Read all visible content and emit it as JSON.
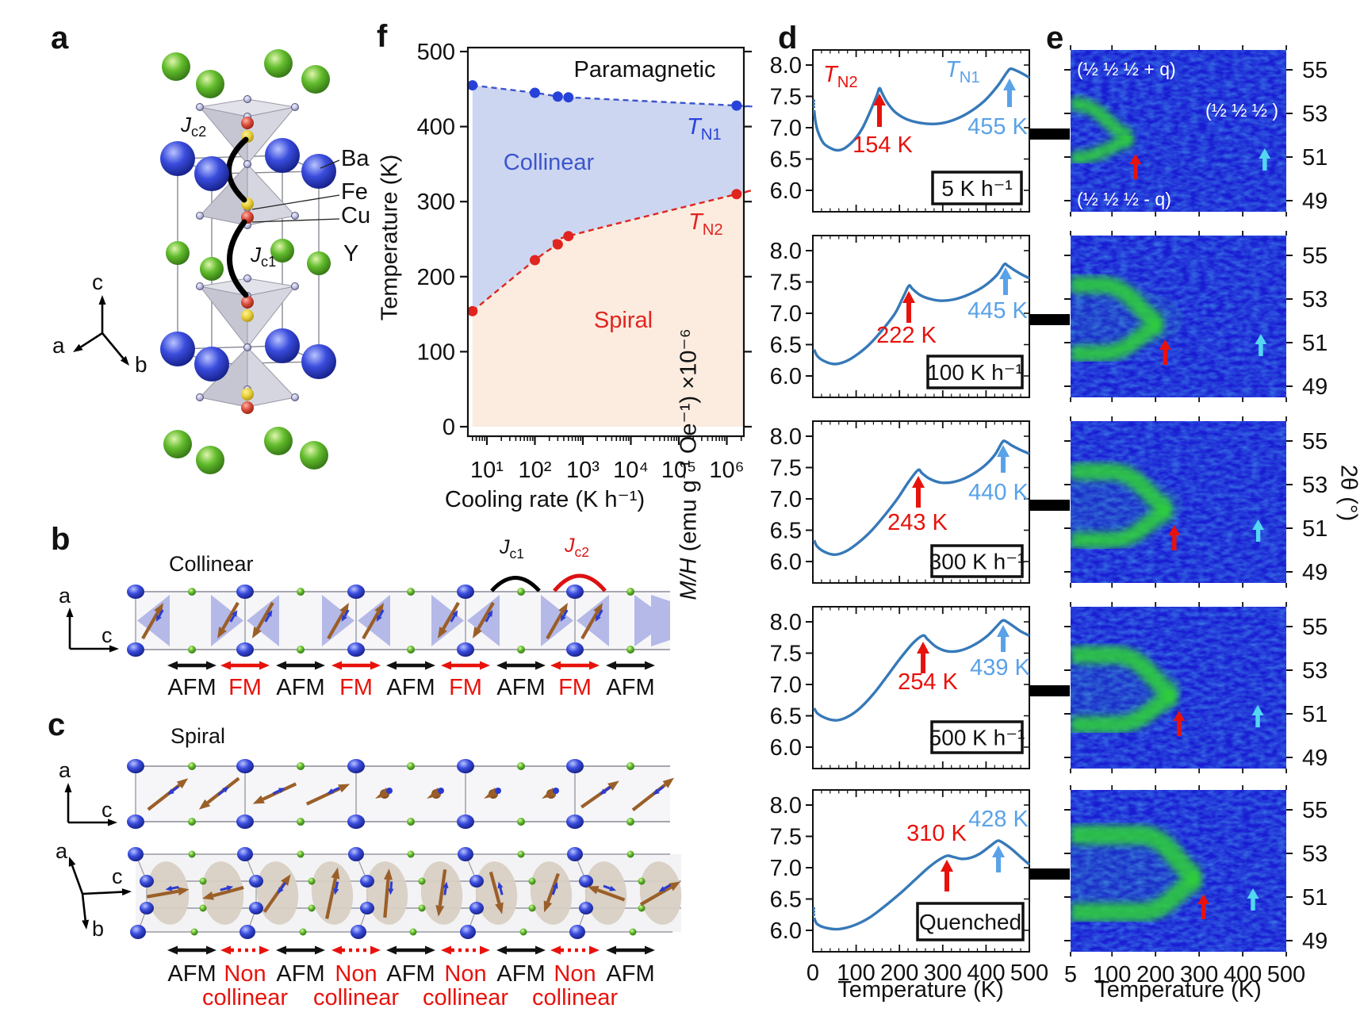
{
  "panels": {
    "a": {
      "label": "a",
      "atoms": {
        "ba": "Ba",
        "fe": "Fe",
        "cu": "Cu",
        "y": "Y"
      },
      "jc1": {
        "j": "J",
        "sub": "c1"
      },
      "jc2": {
        "j": "J",
        "sub": "c2"
      },
      "axes": {
        "a": "a",
        "b": "b",
        "c": "c"
      }
    },
    "b": {
      "label": "b",
      "title": "Collinear",
      "jc1": {
        "j": "J",
        "sub": "c1"
      },
      "jc2": {
        "j": "J",
        "sub": "c2"
      },
      "axes": {
        "a": "a",
        "c": "c"
      },
      "bonds": [
        {
          "label": "AFM",
          "type": "afm"
        },
        {
          "label": "FM",
          "type": "fm"
        },
        {
          "label": "AFM",
          "type": "afm"
        },
        {
          "label": "FM",
          "type": "fm"
        },
        {
          "label": "AFM",
          "type": "afm"
        },
        {
          "label": "FM",
          "type": "fm"
        },
        {
          "label": "AFM",
          "type": "afm"
        },
        {
          "label": "FM",
          "type": "fm"
        },
        {
          "label": "AFM",
          "type": "afm"
        }
      ]
    },
    "c": {
      "label": "c",
      "title": "Spiral",
      "axes1": {
        "a": "a",
        "c": "c"
      },
      "axes2": {
        "a": "a",
        "b": "b",
        "c": "c"
      },
      "bonds": [
        {
          "label": "AFM",
          "type": "afm"
        },
        {
          "label": "Non",
          "label2": "collinear",
          "type": "nc"
        },
        {
          "label": "AFM",
          "type": "afm"
        },
        {
          "label": "Non",
          "label2": "collinear",
          "type": "nc"
        },
        {
          "label": "AFM",
          "type": "afm"
        },
        {
          "label": "Non",
          "label2": "collinear",
          "type": "nc"
        },
        {
          "label": "AFM",
          "type": "afm"
        },
        {
          "label": "Non",
          "label2": "collinear",
          "type": "nc"
        },
        {
          "label": "AFM",
          "type": "afm"
        }
      ]
    },
    "d": {
      "label": "d"
    },
    "e": {
      "label": "e"
    },
    "f": {
      "label": "f"
    }
  },
  "chart_data": [
    {
      "id": "f",
      "type": "scatter",
      "xlabel": "Cooling rate (K h⁻¹)",
      "ylabel": "Temperature (K)",
      "xscale": "log",
      "ylim": [
        0,
        500
      ],
      "ytick_labels": [
        "500",
        "400",
        "300",
        "200",
        "100",
        "0"
      ],
      "ytick_values": [
        500,
        400,
        300,
        200,
        100,
        0
      ],
      "xtick_labels": [
        "10¹",
        "10²",
        "10³",
        "10⁴",
        "10⁵",
        "10⁶"
      ],
      "xtick_values": [
        10,
        100,
        1000,
        10000,
        100000,
        1000000
      ],
      "region_labels": {
        "para": "Paramagnetic",
        "coll": "Collinear",
        "spiral": "Spiral"
      },
      "tn1": {
        "t": "T",
        "sub": "N1"
      },
      "tn2": {
        "t": "T",
        "sub": "N2"
      },
      "series": [
        {
          "name": "TN1",
          "color": "#2742d8",
          "rates": [
            5,
            100,
            300,
            500,
            1600000
          ],
          "temps": [
            455,
            445,
            440,
            439,
            428
          ]
        },
        {
          "name": "TN2",
          "color": "#e02520",
          "rates": [
            5,
            100,
            300,
            500,
            1600000
          ],
          "temps": [
            154,
            222,
            243,
            254,
            310
          ]
        }
      ]
    },
    {
      "id": "d",
      "type": "line",
      "xlabel": "Temperature (K)",
      "ylabel_italic": "M/H",
      "ylabel_rest": " (emu g⁻¹ Oe⁻¹) ×10⁻⁶",
      "xlim": [
        0,
        500
      ],
      "ytick_labels": [
        "8.0",
        "7.5",
        "7.0",
        "6.5",
        "6.0"
      ],
      "ytick_values": [
        8.0,
        7.5,
        7.0,
        6.5,
        6.0
      ],
      "xtick_labels": [
        "0",
        "100",
        "200",
        "300",
        "400",
        "500"
      ],
      "xtick_values": [
        0,
        100,
        200,
        300,
        400,
        500
      ],
      "tn2_name": {
        "t": "T",
        "sub": "N2"
      },
      "tn1_name": {
        "t": "T",
        "sub": "N1"
      },
      "subplots": [
        {
          "rate": "5 K h⁻¹",
          "tn2_T": 154,
          "tn2_text": "154 K",
          "tn1_T": 455,
          "tn1_text": "455 K",
          "points": [
            [
              3,
              7.28
            ],
            [
              6,
              7.1
            ],
            [
              12,
              6.93
            ],
            [
              25,
              6.75
            ],
            [
              45,
              6.66
            ],
            [
              60,
              6.64
            ],
            [
              75,
              6.68
            ],
            [
              95,
              6.8
            ],
            [
              115,
              7.0
            ],
            [
              135,
              7.3
            ],
            [
              148,
              7.52
            ],
            [
              154,
              7.63
            ],
            [
              160,
              7.55
            ],
            [
              172,
              7.4
            ],
            [
              190,
              7.25
            ],
            [
              215,
              7.14
            ],
            [
              245,
              7.08
            ],
            [
              280,
              7.06
            ],
            [
              315,
              7.1
            ],
            [
              355,
              7.22
            ],
            [
              395,
              7.42
            ],
            [
              425,
              7.65
            ],
            [
              448,
              7.88
            ],
            [
              457,
              7.94
            ],
            [
              470,
              7.91
            ],
            [
              485,
              7.86
            ],
            [
              500,
              7.8
            ]
          ]
        },
        {
          "rate": "100 K h⁻¹",
          "tn2_T": 222,
          "tn2_text": "222 K",
          "tn1_T": 445,
          "tn1_text": "445 K",
          "points": [
            [
              3,
              6.42
            ],
            [
              10,
              6.32
            ],
            [
              25,
              6.24
            ],
            [
              50,
              6.19
            ],
            [
              75,
              6.23
            ],
            [
              100,
              6.33
            ],
            [
              130,
              6.5
            ],
            [
              160,
              6.73
            ],
            [
              190,
              7.0
            ],
            [
              210,
              7.28
            ],
            [
              222,
              7.44
            ],
            [
              230,
              7.39
            ],
            [
              248,
              7.29
            ],
            [
              270,
              7.23
            ],
            [
              295,
              7.2
            ],
            [
              325,
              7.22
            ],
            [
              360,
              7.3
            ],
            [
              395,
              7.43
            ],
            [
              425,
              7.61
            ],
            [
              442,
              7.78
            ],
            [
              450,
              7.76
            ],
            [
              465,
              7.69
            ],
            [
              482,
              7.62
            ],
            [
              500,
              7.56
            ]
          ]
        },
        {
          "rate": "300 K h⁻¹",
          "tn2_T": 243,
          "tn2_text": "243 K",
          "tn1_T": 440,
          "tn1_text": "440 K",
          "points": [
            [
              3,
              6.34
            ],
            [
              10,
              6.24
            ],
            [
              28,
              6.15
            ],
            [
              52,
              6.11
            ],
            [
              78,
              6.17
            ],
            [
              105,
              6.3
            ],
            [
              135,
              6.49
            ],
            [
              165,
              6.73
            ],
            [
              195,
              7.0
            ],
            [
              222,
              7.28
            ],
            [
              243,
              7.46
            ],
            [
              252,
              7.41
            ],
            [
              270,
              7.32
            ],
            [
              295,
              7.26
            ],
            [
              325,
              7.27
            ],
            [
              360,
              7.36
            ],
            [
              395,
              7.52
            ],
            [
              420,
              7.7
            ],
            [
              437,
              7.9
            ],
            [
              444,
              7.92
            ],
            [
              460,
              7.85
            ],
            [
              480,
              7.78
            ],
            [
              500,
              7.72
            ]
          ]
        },
        {
          "rate": "500 K h⁻¹",
          "tn2_T": 254,
          "tn2_text": "254 K",
          "tn1_T": 439,
          "tn1_text": "439 K",
          "points": [
            [
              3,
              6.62
            ],
            [
              12,
              6.53
            ],
            [
              35,
              6.45
            ],
            [
              58,
              6.43
            ],
            [
              82,
              6.49
            ],
            [
              110,
              6.63
            ],
            [
              140,
              6.85
            ],
            [
              170,
              7.12
            ],
            [
              200,
              7.4
            ],
            [
              230,
              7.65
            ],
            [
              254,
              7.78
            ],
            [
              265,
              7.72
            ],
            [
              285,
              7.6
            ],
            [
              310,
              7.53
            ],
            [
              340,
              7.54
            ],
            [
              372,
              7.63
            ],
            [
              402,
              7.77
            ],
            [
              425,
              7.93
            ],
            [
              438,
              8.02
            ],
            [
              448,
              8.0
            ],
            [
              465,
              7.92
            ],
            [
              482,
              7.84
            ],
            [
              500,
              7.78
            ]
          ]
        },
        {
          "rate": "Quenched",
          "tn2_T": 310,
          "tn2_text": "310 K",
          "tn1_T": 428,
          "tn1_text": "428 K",
          "points": [
            [
              3,
              6.2
            ],
            [
              10,
              6.1
            ],
            [
              30,
              6.04
            ],
            [
              60,
              6.02
            ],
            [
              95,
              6.08
            ],
            [
              130,
              6.2
            ],
            [
              165,
              6.38
            ],
            [
              200,
              6.58
            ],
            [
              235,
              6.8
            ],
            [
              265,
              6.99
            ],
            [
              290,
              7.12
            ],
            [
              310,
              7.19
            ],
            [
              325,
              7.17
            ],
            [
              345,
              7.14
            ],
            [
              365,
              7.16
            ],
            [
              385,
              7.22
            ],
            [
              405,
              7.32
            ],
            [
              422,
              7.41
            ],
            [
              430,
              7.43
            ],
            [
              445,
              7.37
            ],
            [
              462,
              7.28
            ],
            [
              480,
              7.17
            ],
            [
              500,
              7.05
            ]
          ]
        }
      ]
    },
    {
      "id": "e",
      "type": "heatmap",
      "xlabel": "Temperature (K)",
      "ylabel": "2θ (°)",
      "xtick_labels": [
        "5",
        "100",
        "200",
        "300",
        "400",
        "500"
      ],
      "xtick_values": [
        5,
        100,
        200,
        300,
        400,
        500
      ],
      "ytick_labels": [
        "55",
        "53",
        "51",
        "49"
      ],
      "ytick_values": [
        55,
        53,
        51,
        49
      ],
      "annotations": {
        "plus_q": "(½ ½ ½ + q)",
        "center_q": "(½ ½ ½ )",
        "minus_q": "(½ ½ ½ - q)"
      },
      "rows": [
        {
          "split": 154,
          "end": 456,
          "upper": 53.45,
          "lower": 50.95,
          "center": 51.85,
          "core": "red"
        },
        {
          "split": 222,
          "end": 447,
          "upper": 53.65,
          "lower": 50.5,
          "center": 51.85,
          "core": "red"
        },
        {
          "split": 243,
          "end": 441,
          "upper": 53.6,
          "lower": 50.45,
          "center": 51.85,
          "core": "yellow"
        },
        {
          "split": 254,
          "end": 440,
          "upper": 53.7,
          "lower": 50.5,
          "center": 51.85,
          "core": "yellow"
        },
        {
          "split": 310,
          "end": 429,
          "upper": 53.85,
          "lower": 50.3,
          "center": 51.85,
          "core": "bright"
        }
      ]
    }
  ]
}
